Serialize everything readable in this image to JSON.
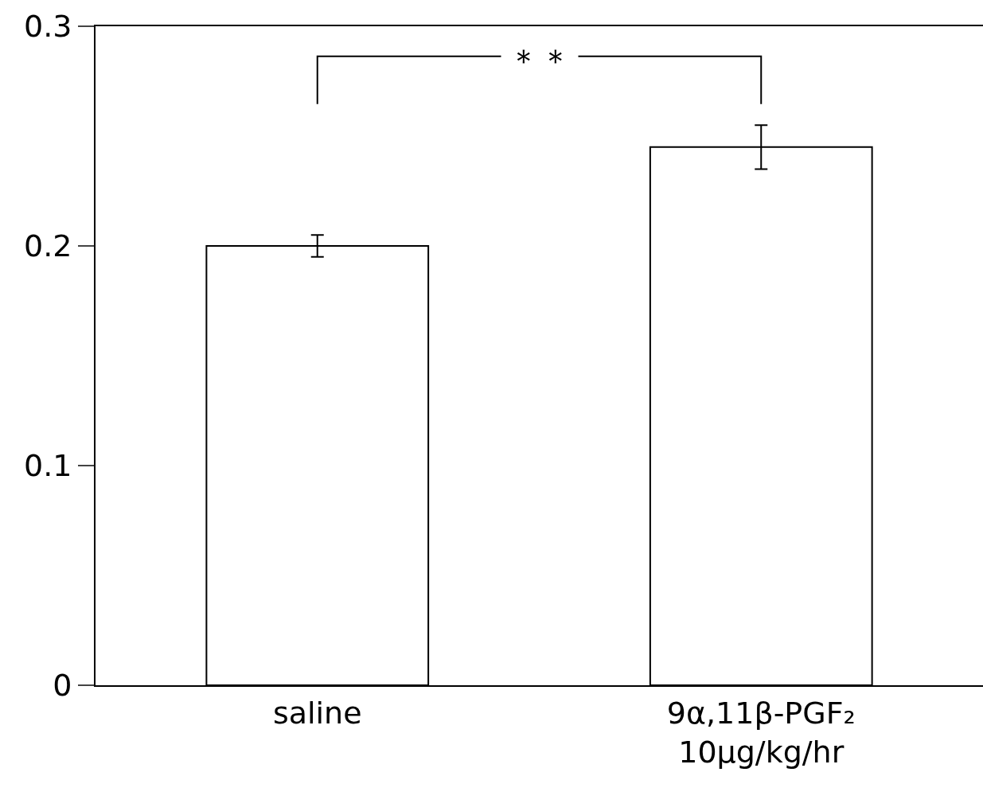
{
  "chart_data": {
    "type": "bar",
    "categories": [
      "saline",
      "9α,11β-PGF₂\n10μg/kg/hr"
    ],
    "values": [
      0.2,
      0.245
    ],
    "errors": [
      0.005,
      0.01
    ],
    "color": "#ffffff",
    "ylim": [
      0,
      0.3
    ],
    "yticks": [
      0,
      0.1,
      0.2,
      0.3
    ],
    "grid": false,
    "legend": false,
    "annotations": [
      "＊＊"
    ]
  }
}
